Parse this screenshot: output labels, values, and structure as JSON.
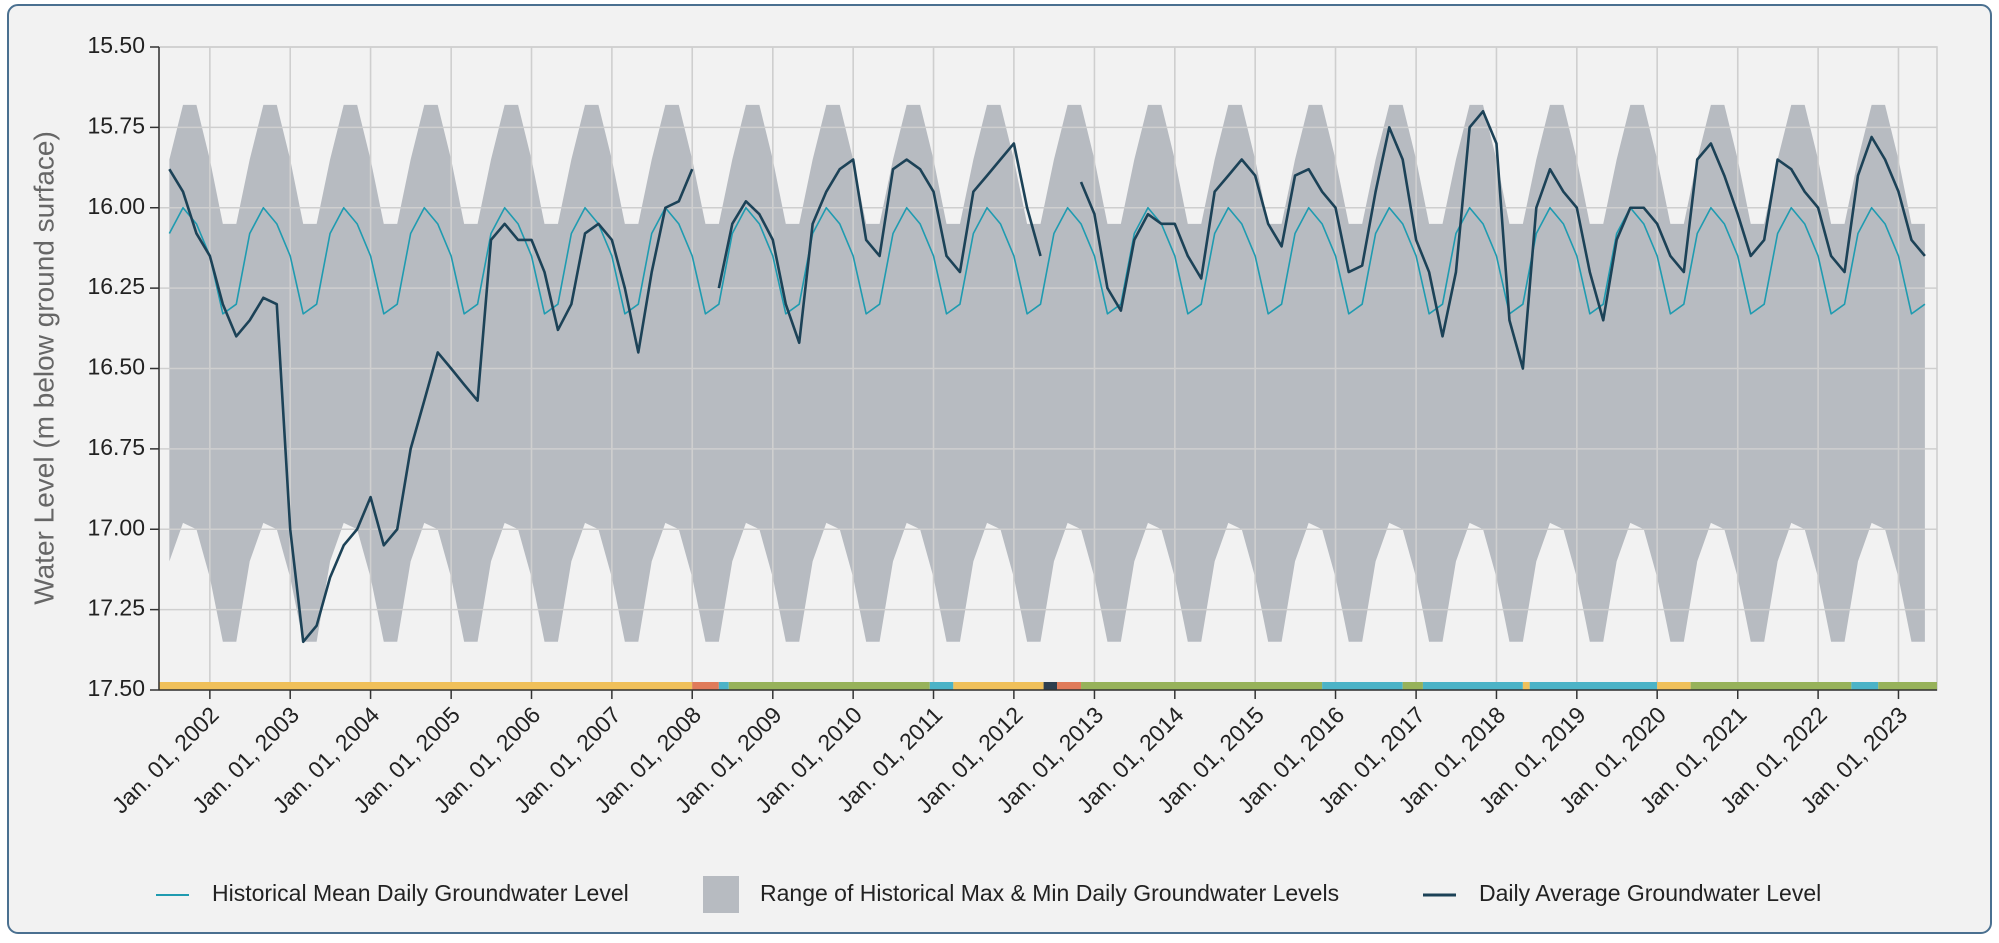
{
  "chart_data": {
    "type": "line",
    "ylabel": "Water Level (m below ground surface)",
    "y_inverted": true,
    "ylim": [
      15.5,
      17.5
    ],
    "yticks": [
      {
        "value": 15.5,
        "label": "15.50"
      },
      {
        "value": 15.75,
        "label": "15.75"
      },
      {
        "value": 16.0,
        "label": "16.00"
      },
      {
        "value": 16.25,
        "label": "16.25"
      },
      {
        "value": 16.5,
        "label": "16.50"
      },
      {
        "value": 16.75,
        "label": "16.75"
      },
      {
        "value": 17.0,
        "label": "17.00"
      },
      {
        "value": 17.25,
        "label": "17.25"
      },
      {
        "value": 17.5,
        "label": "17.50"
      }
    ],
    "xlim": [
      "2001-05-15",
      "2023-06-25"
    ],
    "xticks": [
      {
        "value": "2002-01-01",
        "label": "Jan. 01, 2002"
      },
      {
        "value": "2003-01-01",
        "label": "Jan. 01, 2003"
      },
      {
        "value": "2004-01-01",
        "label": "Jan. 01, 2004"
      },
      {
        "value": "2005-01-01",
        "label": "Jan. 01, 2005"
      },
      {
        "value": "2006-01-01",
        "label": "Jan. 01, 2006"
      },
      {
        "value": "2007-01-01",
        "label": "Jan. 01, 2007"
      },
      {
        "value": "2008-01-01",
        "label": "Jan. 01, 2008"
      },
      {
        "value": "2009-01-01",
        "label": "Jan. 01, 2009"
      },
      {
        "value": "2010-01-01",
        "label": "Jan. 01, 2010"
      },
      {
        "value": "2011-01-01",
        "label": "Jan. 01, 2011"
      },
      {
        "value": "2012-01-01",
        "label": "Jan. 01, 2012"
      },
      {
        "value": "2013-01-01",
        "label": "Jan. 01, 2013"
      },
      {
        "value": "2014-01-01",
        "label": "Jan. 01, 2014"
      },
      {
        "value": "2015-01-01",
        "label": "Jan. 01, 2015"
      },
      {
        "value": "2016-01-01",
        "label": "Jan. 01, 2016"
      },
      {
        "value": "2017-01-01",
        "label": "Jan. 01, 2017"
      },
      {
        "value": "2018-01-01",
        "label": "Jan. 01, 2018"
      },
      {
        "value": "2019-01-01",
        "label": "Jan. 01, 2019"
      },
      {
        "value": "2020-01-01",
        "label": "Jan. 01, 2020"
      },
      {
        "value": "2021-01-01",
        "label": "Jan. 01, 2021"
      },
      {
        "value": "2022-01-01",
        "label": "Jan. 01, 2022"
      },
      {
        "value": "2023-01-01",
        "label": "Jan. 01, 2023"
      }
    ],
    "grid": true,
    "x": [
      "2001-07-01",
      "2001-09-01",
      "2001-11-01",
      "2002-01-01",
      "2002-03-01",
      "2002-05-01",
      "2002-07-01",
      "2002-09-01",
      "2002-11-01",
      "2003-01-01",
      "2003-03-01",
      "2003-05-01",
      "2003-07-01",
      "2003-09-01",
      "2003-11-01",
      "2004-01-01",
      "2004-03-01",
      "2004-05-01",
      "2004-07-01",
      "2004-09-01",
      "2004-11-01",
      "2005-01-01",
      "2005-03-01",
      "2005-05-01",
      "2005-07-01",
      "2005-09-01",
      "2005-11-01",
      "2006-01-01",
      "2006-03-01",
      "2006-05-01",
      "2006-07-01",
      "2006-09-01",
      "2006-11-01",
      "2007-01-01",
      "2007-03-01",
      "2007-05-01",
      "2007-07-01",
      "2007-09-01",
      "2007-11-01",
      "2008-01-01",
      "2008-03-01",
      "2008-05-01",
      "2008-07-01",
      "2008-09-01",
      "2008-11-01",
      "2009-01-01",
      "2009-03-01",
      "2009-05-01",
      "2009-07-01",
      "2009-09-01",
      "2009-11-01",
      "2010-01-01",
      "2010-03-01",
      "2010-05-01",
      "2010-07-01",
      "2010-09-01",
      "2010-11-01",
      "2011-01-01",
      "2011-03-01",
      "2011-05-01",
      "2011-07-01",
      "2011-09-01",
      "2011-11-01",
      "2012-01-01",
      "2012-03-01",
      "2012-05-01",
      "2012-07-01",
      "2012-09-01",
      "2012-11-01",
      "2013-01-01",
      "2013-03-01",
      "2013-05-01",
      "2013-07-01",
      "2013-09-01",
      "2013-11-01",
      "2014-01-01",
      "2014-03-01",
      "2014-05-01",
      "2014-07-01",
      "2014-09-01",
      "2014-11-01",
      "2015-01-01",
      "2015-03-01",
      "2015-05-01",
      "2015-07-01",
      "2015-09-01",
      "2015-11-01",
      "2016-01-01",
      "2016-03-01",
      "2016-05-01",
      "2016-07-01",
      "2016-09-01",
      "2016-11-01",
      "2017-01-01",
      "2017-03-01",
      "2017-05-01",
      "2017-07-01",
      "2017-09-01",
      "2017-11-01",
      "2018-01-01",
      "2018-03-01",
      "2018-05-01",
      "2018-07-01",
      "2018-09-01",
      "2018-11-01",
      "2019-01-01",
      "2019-03-01",
      "2019-05-01",
      "2019-07-01",
      "2019-09-01",
      "2019-11-01",
      "2020-01-01",
      "2020-03-01",
      "2020-05-01",
      "2020-07-01",
      "2020-09-01",
      "2020-11-01",
      "2021-01-01",
      "2021-03-01",
      "2021-05-01",
      "2021-07-01",
      "2021-09-01",
      "2021-11-01",
      "2022-01-01",
      "2022-03-01",
      "2022-05-01",
      "2022-07-01",
      "2022-09-01",
      "2022-11-01",
      "2023-01-01",
      "2023-03-01",
      "2023-05-01"
    ],
    "series": [
      {
        "name": "Historical Mean Daily Groundwater Level",
        "color": "#1f9bb0",
        "kind": "line",
        "width": 1.6,
        "values": [
          16.08,
          16.0,
          16.05,
          16.15,
          16.33,
          16.3,
          16.08,
          16.0,
          16.05,
          16.15,
          16.33,
          16.3,
          16.08,
          16.0,
          16.05,
          16.15,
          16.33,
          16.3,
          16.08,
          16.0,
          16.05,
          16.15,
          16.33,
          16.3,
          16.08,
          16.0,
          16.05,
          16.15,
          16.33,
          16.3,
          16.08,
          16.0,
          16.05,
          16.15,
          16.33,
          16.3,
          16.08,
          16.0,
          16.05,
          16.15,
          16.33,
          16.3,
          16.08,
          16.0,
          16.05,
          16.15,
          16.33,
          16.3,
          16.08,
          16.0,
          16.05,
          16.15,
          16.33,
          16.3,
          16.08,
          16.0,
          16.05,
          16.15,
          16.33,
          16.3,
          16.08,
          16.0,
          16.05,
          16.15,
          16.33,
          16.3,
          16.08,
          16.0,
          16.05,
          16.15,
          16.33,
          16.3,
          16.08,
          16.0,
          16.05,
          16.15,
          16.33,
          16.3,
          16.08,
          16.0,
          16.05,
          16.15,
          16.33,
          16.3,
          16.08,
          16.0,
          16.05,
          16.15,
          16.33,
          16.3,
          16.08,
          16.0,
          16.05,
          16.15,
          16.33,
          16.3,
          16.08,
          16.0,
          16.05,
          16.15,
          16.33,
          16.3,
          16.08,
          16.0,
          16.05,
          16.15,
          16.33,
          16.3,
          16.08,
          16.0,
          16.05,
          16.15,
          16.33,
          16.3,
          16.08,
          16.0,
          16.05,
          16.15,
          16.33,
          16.3,
          16.08,
          16.0,
          16.05,
          16.15,
          16.33,
          16.3,
          16.08,
          16.0,
          16.05,
          16.15,
          16.33,
          16.3
        ]
      },
      {
        "name": "Range of Historical Max & Min Daily Groundwater Levels",
        "color": "#b7bbc1",
        "kind": "range",
        "values": [
          15.85,
          15.68,
          15.68,
          15.85,
          16.05,
          16.05,
          15.85,
          15.68,
          15.68,
          15.85,
          16.05,
          16.05,
          15.85,
          15.68,
          15.68,
          15.85,
          16.05,
          16.05,
          15.85,
          15.68,
          15.68,
          15.85,
          16.05,
          16.05,
          15.85,
          15.68,
          15.68,
          15.85,
          16.05,
          16.05,
          15.85,
          15.68,
          15.68,
          15.85,
          16.05,
          16.05,
          15.85,
          15.68,
          15.68,
          15.85,
          16.05,
          16.05,
          15.85,
          15.68,
          15.68,
          15.85,
          16.05,
          16.05,
          15.85,
          15.68,
          15.68,
          15.85,
          16.05,
          16.05,
          15.85,
          15.68,
          15.68,
          15.85,
          16.05,
          16.05,
          15.85,
          15.68,
          15.68,
          15.85,
          16.05,
          16.05,
          15.85,
          15.68,
          15.68,
          15.85,
          16.05,
          16.05,
          15.85,
          15.68,
          15.68,
          15.85,
          16.05,
          16.05,
          15.85,
          15.68,
          15.68,
          15.85,
          16.05,
          16.05,
          15.85,
          15.68,
          15.68,
          15.85,
          16.05,
          16.05,
          15.85,
          15.68,
          15.68,
          15.85,
          16.05,
          16.05,
          15.85,
          15.68,
          15.68,
          15.85,
          16.05,
          16.05,
          15.85,
          15.68,
          15.68,
          15.85,
          16.05,
          16.05,
          15.85,
          15.68,
          15.68,
          15.85,
          16.05,
          16.05,
          15.85,
          15.68,
          15.68,
          15.85,
          16.05,
          16.05,
          15.85,
          15.68,
          15.68,
          15.85,
          16.05,
          16.05,
          15.85,
          15.68,
          15.68,
          15.85,
          16.05,
          16.05
        ],
        "low": [
          17.1,
          16.98,
          17.0,
          17.15,
          17.35,
          17.35,
          17.1,
          16.98,
          17.0,
          17.15,
          17.35,
          17.35,
          17.1,
          16.98,
          17.0,
          17.15,
          17.35,
          17.35,
          17.1,
          16.98,
          17.0,
          17.15,
          17.35,
          17.35,
          17.1,
          16.98,
          17.0,
          17.15,
          17.35,
          17.35,
          17.1,
          16.98,
          17.0,
          17.15,
          17.35,
          17.35,
          17.1,
          16.98,
          17.0,
          17.15,
          17.35,
          17.35,
          17.1,
          16.98,
          17.0,
          17.15,
          17.35,
          17.35,
          17.1,
          16.98,
          17.0,
          17.15,
          17.35,
          17.35,
          17.1,
          16.98,
          17.0,
          17.15,
          17.35,
          17.35,
          17.1,
          16.98,
          17.0,
          17.15,
          17.35,
          17.35,
          17.1,
          16.98,
          17.0,
          17.15,
          17.35,
          17.35,
          17.1,
          16.98,
          17.0,
          17.15,
          17.35,
          17.35,
          17.1,
          16.98,
          17.0,
          17.15,
          17.35,
          17.35,
          17.1,
          16.98,
          17.0,
          17.15,
          17.35,
          17.35,
          17.1,
          16.98,
          17.0,
          17.15,
          17.35,
          17.35,
          17.1,
          16.98,
          17.0,
          17.15,
          17.35,
          17.35,
          17.1,
          16.98,
          17.0,
          17.15,
          17.35,
          17.35,
          17.1,
          16.98,
          17.0,
          17.15,
          17.35,
          17.35,
          17.1,
          16.98,
          17.0,
          17.15,
          17.35,
          17.35,
          17.1,
          16.98,
          17.0,
          17.15,
          17.35,
          17.35,
          17.1,
          16.98,
          17.0,
          17.15,
          17.35,
          17.35
        ]
      },
      {
        "name": "Daily Average Groundwater Level",
        "color": "#1c4257",
        "kind": "line",
        "width": 2.6,
        "values": [
          15.88,
          15.95,
          16.08,
          16.15,
          16.3,
          16.4,
          16.35,
          16.28,
          16.3,
          17.0,
          17.35,
          17.3,
          17.15,
          17.05,
          17.0,
          16.9,
          17.05,
          17.0,
          16.75,
          16.6,
          16.45,
          16.5,
          16.55,
          16.6,
          16.1,
          16.05,
          16.1,
          16.1,
          16.2,
          16.38,
          16.3,
          16.08,
          16.05,
          16.1,
          16.25,
          16.45,
          16.2,
          16.0,
          15.98,
          15.88,
          null,
          16.25,
          16.05,
          15.98,
          16.02,
          16.1,
          16.3,
          16.42,
          16.05,
          15.95,
          15.88,
          15.85,
          16.1,
          16.15,
          15.88,
          15.85,
          15.88,
          15.95,
          16.15,
          16.2,
          15.95,
          15.9,
          15.85,
          15.8,
          16.0,
          16.15,
          null,
          null,
          15.92,
          16.02,
          16.25,
          16.32,
          16.1,
          16.02,
          16.05,
          16.05,
          16.15,
          16.22,
          15.95,
          15.9,
          15.85,
          15.9,
          16.05,
          16.12,
          15.9,
          15.88,
          15.95,
          16.0,
          16.2,
          16.18,
          15.95,
          15.75,
          15.85,
          16.1,
          16.2,
          16.4,
          16.2,
          15.75,
          15.7,
          15.8,
          16.35,
          16.5,
          16.0,
          15.88,
          15.95,
          16.0,
          16.2,
          16.35,
          16.1,
          16.0,
          16.0,
          16.05,
          16.15,
          16.2,
          15.85,
          15.8,
          15.9,
          16.02,
          16.15,
          16.1,
          15.85,
          15.88,
          15.95,
          16.0,
          16.15,
          16.2,
          15.9,
          15.78,
          15.85,
          15.95,
          16.1,
          16.15
        ]
      }
    ],
    "status_bands": [
      {
        "start": "2001-05-15",
        "end": "2008-01-01",
        "color": "#f0c05a"
      },
      {
        "start": "2008-01-01",
        "end": "2008-05-01",
        "color": "#e07b5a"
      },
      {
        "start": "2008-05-01",
        "end": "2008-06-15",
        "color": "#4bb3c7"
      },
      {
        "start": "2008-06-15",
        "end": "2010-12-15",
        "color": "#97b25a"
      },
      {
        "start": "2010-12-15",
        "end": "2011-04-01",
        "color": "#4bb3c7"
      },
      {
        "start": "2011-04-01",
        "end": "2012-05-15",
        "color": "#f0c05a"
      },
      {
        "start": "2012-05-15",
        "end": "2012-07-15",
        "color": "#2f3f4f"
      },
      {
        "start": "2012-07-15",
        "end": "2012-11-01",
        "color": "#e07b5a"
      },
      {
        "start": "2012-11-01",
        "end": "2015-11-01",
        "color": "#97b25a"
      },
      {
        "start": "2015-11-01",
        "end": "2016-11-01",
        "color": "#4bb3c7"
      },
      {
        "start": "2016-11-01",
        "end": "2017-02-01",
        "color": "#97b25a"
      },
      {
        "start": "2017-02-01",
        "end": "2018-05-01",
        "color": "#4bb3c7"
      },
      {
        "start": "2018-05-01",
        "end": "2018-06-01",
        "color": "#f0c05a"
      },
      {
        "start": "2018-06-01",
        "end": "2020-01-01",
        "color": "#4bb3c7"
      },
      {
        "start": "2020-01-01",
        "end": "2020-06-01",
        "color": "#f0c05a"
      },
      {
        "start": "2020-06-01",
        "end": "2022-06-01",
        "color": "#97b25a"
      },
      {
        "start": "2022-06-01",
        "end": "2022-10-01",
        "color": "#4bb3c7"
      },
      {
        "start": "2022-10-01",
        "end": "2023-06-25",
        "color": "#97b25a"
      }
    ]
  }
}
